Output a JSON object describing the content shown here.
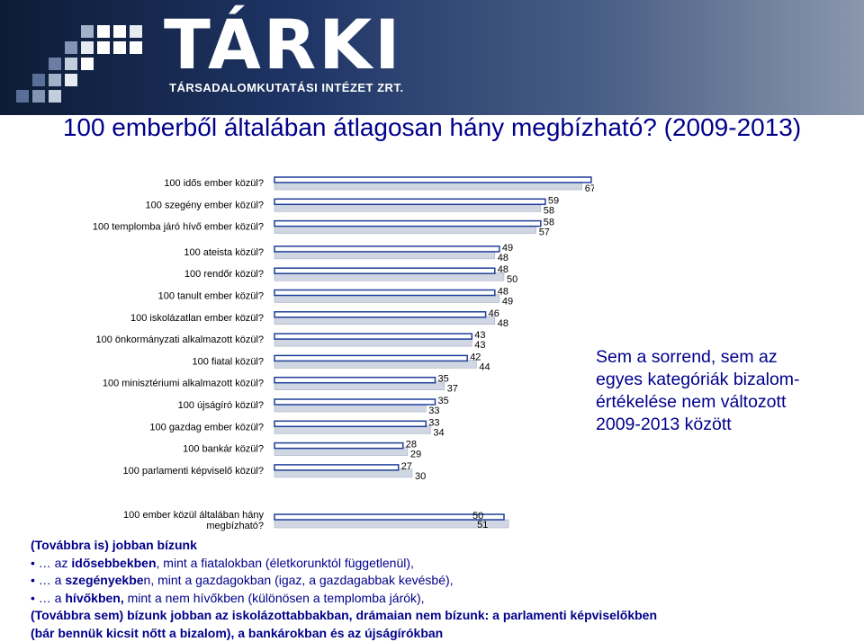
{
  "banner": {
    "logo_text": "TÁRKI",
    "tagline": "TÁRSADALOMKUTATÁSI INTÉZET ZRT."
  },
  "title": "100 emberből általában átlagosan hány megbízható? (2009-2013)",
  "note": "Sem a sorrend, sem az egyes kategóriák bizalom- értékelése nem változott 2009-2013 között",
  "chart_data": {
    "type": "bar",
    "orientation": "horizontal",
    "categories": [
      "100 idős ember közül?",
      "100 szegény ember közül?",
      "100 templomba járó hívő ember közül?",
      "100 ateista közül?",
      "100 rendőr közül?",
      "100 tanult ember közül?",
      "100 iskolázatlan ember közül?",
      "100 önkormányzati alkalmazott közül?",
      "100 fiatal közül?",
      "100 minisztériumi alkalmazott közül?",
      "100 újságíró közül?",
      "100 gazdag ember közül?",
      "100 bankár közül?",
      "100 parlamenti képviselő közül?"
    ],
    "series": [
      {
        "values": [
          69,
          59,
          58,
          49,
          48,
          48,
          46,
          43,
          42,
          35,
          35,
          33,
          28,
          27
        ],
        "color": "#1f3f99"
      },
      {
        "values": [
          67,
          58,
          57,
          48,
          50,
          49,
          48,
          43,
          44,
          37,
          33,
          34,
          29,
          30
        ],
        "color": "#d0d6e2"
      }
    ],
    "summary": {
      "category": "100 ember közül általában hány megbízható?",
      "values": [
        50,
        51
      ]
    },
    "xlim": [
      0,
      100
    ],
    "grid": false
  },
  "bottom_text": {
    "line1": "(Továbbra is) jobban bízunk",
    "line2_pre": "… az ",
    "line2_bold": "idősebbekben",
    "line2_post": ", mint a fiatalokban (életkorunktól függetlenül),",
    "line3_pre": "… a ",
    "line3_bold": "szegényekbe",
    "line3_post": "n, mint a gazdagokban (igaz, a gazdagabbak kevésbé),",
    "line4_pre": "… a ",
    "line4_bold": "hívőkben,",
    "line4_post": " mint a nem hívőkben (különösen a templomba járók),",
    "line5": "(Továbbra sem) bízunk jobban az iskolázottabbakban, drámaian nem bízunk: a parlamenti képviselőkben",
    "line6": "(bár bennük kicsit nőtt a bizalom), a bankárokban és az újságírókban"
  }
}
